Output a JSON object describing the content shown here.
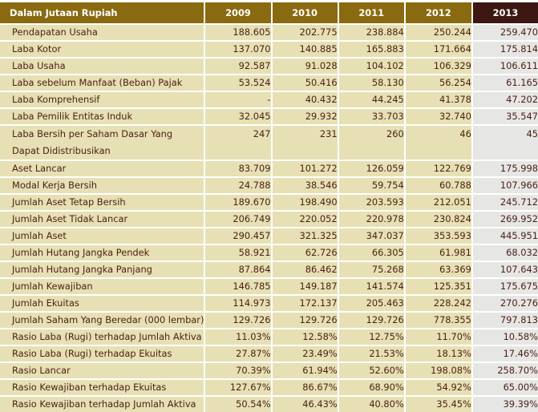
{
  "table": {
    "header": {
      "label": "Dalam Jutaan Rupiah",
      "years": [
        "2009",
        "2010",
        "2011",
        "2012",
        "2013"
      ]
    },
    "highlight_year": "2013",
    "colors": {
      "header_bg": "#8a6a10",
      "header_highlight_bg": "#3d1712",
      "row_bg": "#e6e0b4",
      "row_highlight_bg": "#e6e6e4",
      "text": "#4a1e14"
    },
    "rows": [
      {
        "label": "Pendapatan Usaha",
        "values": [
          "188.605",
          "202.775",
          "238.884",
          "250.244",
          "259.470"
        ]
      },
      {
        "label": "Laba Kotor",
        "values": [
          "137.070",
          "140.885",
          "165.883",
          "171.664",
          "175.814"
        ]
      },
      {
        "label": "Laba Usaha",
        "values": [
          "92.587",
          "91.028",
          "104.102",
          "106.329",
          "106.611"
        ]
      },
      {
        "label": "Laba sebelum Manfaat (Beban) Pajak",
        "values": [
          "53.524",
          "50.416",
          "58.130",
          "56.254",
          "61.165"
        ]
      },
      {
        "label": "Laba Komprehensif",
        "values": [
          "-",
          "40.432",
          "44.245",
          "41.378",
          "47.202"
        ]
      },
      {
        "label": "Laba Pemilik Entitas Induk",
        "values": [
          "32.045",
          "29.932",
          "33.703",
          "32.740",
          "35.547"
        ]
      },
      {
        "label": "Laba Bersih per Saham Dasar Yang Dapat Didistribusikan",
        "values": [
          "247",
          "231",
          "260",
          "46",
          "45"
        ]
      },
      {
        "label": "Aset Lancar",
        "values": [
          "83.709",
          "101.272",
          "126.059",
          "122.769",
          "175.998"
        ]
      },
      {
        "label": "Modal Kerja Bersih",
        "values": [
          "24.788",
          "38.546",
          "59.754",
          "60.788",
          "107.966"
        ]
      },
      {
        "label": "Jumlah Aset Tetap Bersih",
        "values": [
          "189.670",
          "198.490",
          "203.593",
          "212.051",
          "245.712"
        ]
      },
      {
        "label": "Jumlah Aset Tidak Lancar",
        "values": [
          "206.749",
          "220.052",
          "220.978",
          "230.824",
          "269.952"
        ]
      },
      {
        "label": "Jumlah Aset",
        "values": [
          "290.457",
          "321.325",
          "347.037",
          "353.593",
          "445.951"
        ]
      },
      {
        "label": "Jumlah Hutang Jangka Pendek",
        "values": [
          "58.921",
          "62.726",
          "66.305",
          "61.981",
          "68.032"
        ]
      },
      {
        "label": "Jumlah Hutang Jangka Panjang",
        "values": [
          "87.864",
          "86.462",
          "75.268",
          "63.369",
          "107.643"
        ]
      },
      {
        "label": "Jumlah Kewajiban",
        "values": [
          "146.785",
          "149.187",
          "141.574",
          "125.351",
          "175.675"
        ]
      },
      {
        "label": "Jumlah Ekuitas",
        "values": [
          "114.973",
          "172.137",
          "205.463",
          "228.242",
          "270.276"
        ]
      },
      {
        "label": "Jumlah Saham Yang Beredar (000 lembar)",
        "values": [
          "129.726",
          "129.726",
          "129.726",
          "778.355",
          "797.813"
        ]
      },
      {
        "label": "Rasio Laba (Rugi) terhadap Jumlah Aktiva",
        "values": [
          "11.03%",
          "12.58%",
          "12.75%",
          "11.70%",
          "10.58%"
        ]
      },
      {
        "label": "Rasio Laba (Rugi) terhadap Ekuitas",
        "values": [
          "27.87%",
          "23.49%",
          "21.53%",
          "18.13%",
          "17.46%"
        ]
      },
      {
        "label": "Rasio Lancar",
        "values": [
          "70.39%",
          "61.94%",
          "52.60%",
          "198.08%",
          "258.70%"
        ]
      },
      {
        "label": "Rasio Kewajiban terhadap Ekuitas",
        "values": [
          "127.67%",
          "86.67%",
          "68.90%",
          "54.92%",
          "65.00%"
        ]
      },
      {
        "label": "Rasio Kewajiban terhadap Jumlah Aktiva",
        "values": [
          "50.54%",
          "46.43%",
          "40.80%",
          "35.45%",
          "39.39%"
        ]
      }
    ]
  }
}
